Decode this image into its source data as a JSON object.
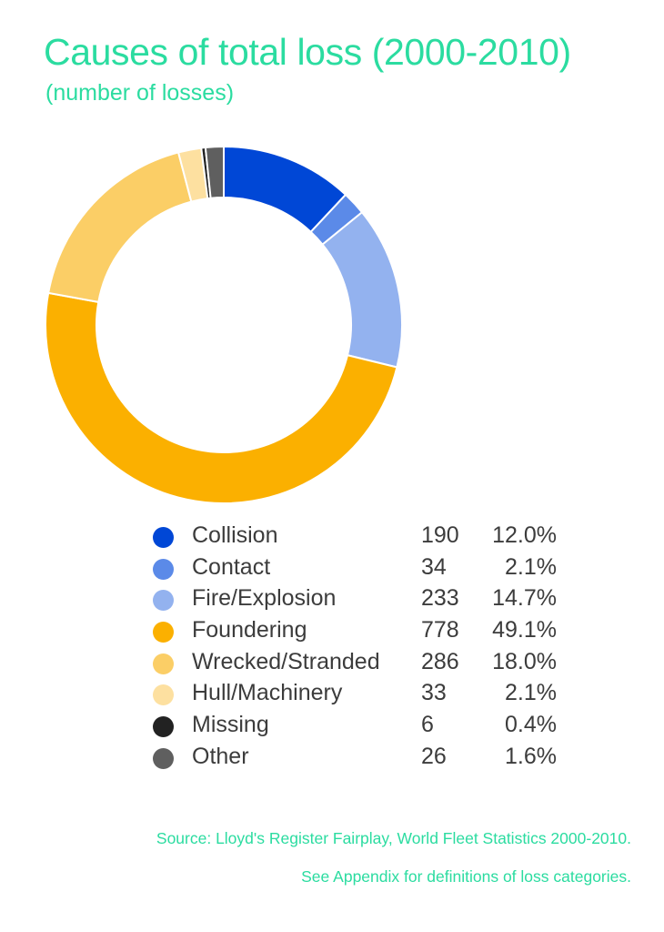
{
  "header": {
    "title": "Causes of total loss (2000-2010)",
    "subtitle": "(number of losses)"
  },
  "chart_data": {
    "type": "pie",
    "variant": "donut",
    "title": "Causes of total loss (2000-2010)",
    "subtitle": "(number of losses)",
    "legend_position": "bottom",
    "categories": [
      "Collision",
      "Contact",
      "Fire/Explosion",
      "Foundering",
      "Wrecked/Stranded",
      "Hull/Machinery",
      "Missing",
      "Other"
    ],
    "values": [
      190,
      34,
      233,
      778,
      286,
      33,
      6,
      26
    ],
    "percent_labels": [
      "12.0%",
      "2.1%",
      "14.7%",
      "49.1%",
      "18.0%",
      "2.1%",
      "0.4%",
      "1.6%"
    ],
    "colors": [
      "#0047d6",
      "#5b8ae8",
      "#93b2ef",
      "#fbb000",
      "#fbce66",
      "#fde0a0",
      "#222222",
      "#5f5f5f"
    ]
  },
  "footer": {
    "source": "Source: Lloyd's Register Fairplay, World Fleet Statistics 2000-2010.",
    "appendix": "See Appendix for definitions of loss categories."
  }
}
